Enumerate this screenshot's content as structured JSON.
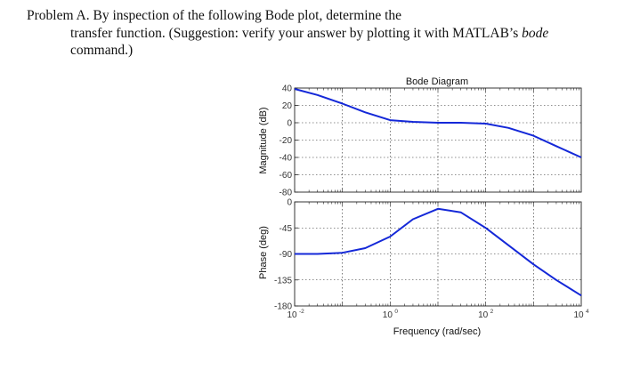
{
  "problem": {
    "line1": "Problem A.  By inspection of the following Bode plot, determine the",
    "line2_pre": "transfer function. (Suggestion:  verify your answer by plotting it with MATLAB’s ",
    "line2_ital": "bode",
    "line3": "command.)"
  },
  "chart_data": [
    {
      "type": "line",
      "title": "Bode Diagram",
      "ylabel": "Magnitude (dB)",
      "xscale": "log",
      "xlim": [
        0.01,
        10000
      ],
      "ylim": [
        -80,
        40
      ],
      "yticks": [
        40,
        20,
        0,
        -20,
        -40,
        -60,
        -80
      ],
      "grid": true,
      "series": [
        {
          "x": [
            0.01,
            0.03,
            0.1,
            0.3,
            1,
            3,
            10,
            30,
            100,
            300,
            1000,
            3000,
            10000
          ],
          "y": [
            39,
            32,
            22,
            12,
            3,
            1,
            0,
            0,
            -1,
            -6,
            -15,
            -27,
            -40
          ],
          "color": "#1428d8"
        }
      ]
    },
    {
      "type": "line",
      "ylabel": "Phase (deg)",
      "xlabel": "Frequency  (rad/sec)",
      "xscale": "log",
      "xlim": [
        0.01,
        10000
      ],
      "ylim": [
        -180,
        0
      ],
      "yticks": [
        0,
        -45,
        -90,
        -135,
        -180
      ],
      "xticks": [
        "10^-2",
        "10^0",
        "10^2",
        "10^4"
      ],
      "grid": true,
      "series": [
        {
          "x": [
            0.01,
            0.03,
            0.1,
            0.3,
            1,
            3,
            10,
            30,
            100,
            300,
            1000,
            3000,
            10000
          ],
          "y": [
            -90,
            -90,
            -88,
            -80,
            -60,
            -30,
            -12,
            -18,
            -45,
            -75,
            -108,
            -135,
            -162
          ],
          "color": "#1428d8"
        }
      ]
    }
  ]
}
